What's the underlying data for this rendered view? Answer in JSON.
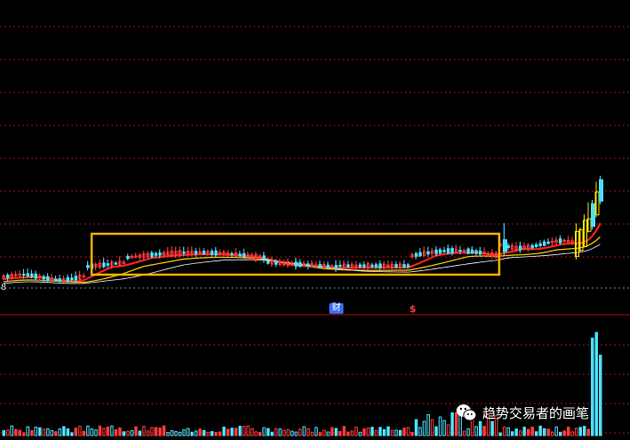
{
  "chart_data": {
    "type": "candlestick",
    "price_axis_label": "8",
    "markers": {
      "finance": "财",
      "dollar": "$"
    },
    "colors": {
      "up": "#ff3b3b",
      "down": "#4de0ff",
      "limit_up": "#ffe000",
      "ma_short": "#ff2020",
      "ma_mid": "#ffd400",
      "ma_long": "#ffffff",
      "grid": "#b01010",
      "baseline": "#3aa0b0",
      "box": "#ffb000"
    },
    "consolidation_box": true
  },
  "watermark": {
    "text": "趋势交易者的画笔",
    "icon": "wechat-icon"
  }
}
